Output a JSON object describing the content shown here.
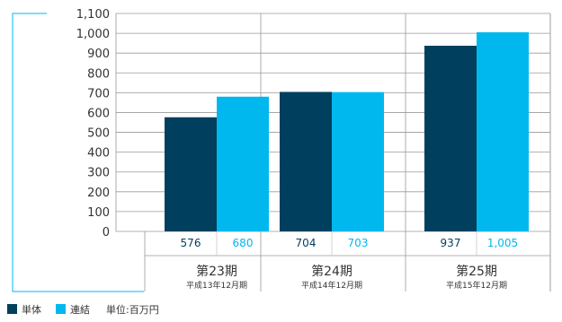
{
  "chart_data": {
    "type": "bar",
    "categories": [
      "第23期",
      "第24期",
      "第25期"
    ],
    "category_subtitles": [
      "平成13年12月期",
      "平成14年12月期",
      "平成15年12月期"
    ],
    "series": [
      {
        "name": "単体",
        "values": [
          576,
          704,
          937
        ],
        "labels": [
          "576",
          "704",
          "937"
        ],
        "color": "#003f5e"
      },
      {
        "name": "連結",
        "values": [
          680,
          703,
          1005
        ],
        "labels": [
          "680",
          "703",
          "1,005"
        ],
        "color": "#00b8ee"
      }
    ],
    "ylim": [
      0,
      1100
    ],
    "yticks": [
      "0",
      "100",
      "200",
      "300",
      "400",
      "500",
      "600",
      "700",
      "800",
      "900",
      "1,000",
      "1,100"
    ],
    "unit_note": "単位:百万円",
    "grid": true,
    "legend_position": "bottom-left"
  }
}
